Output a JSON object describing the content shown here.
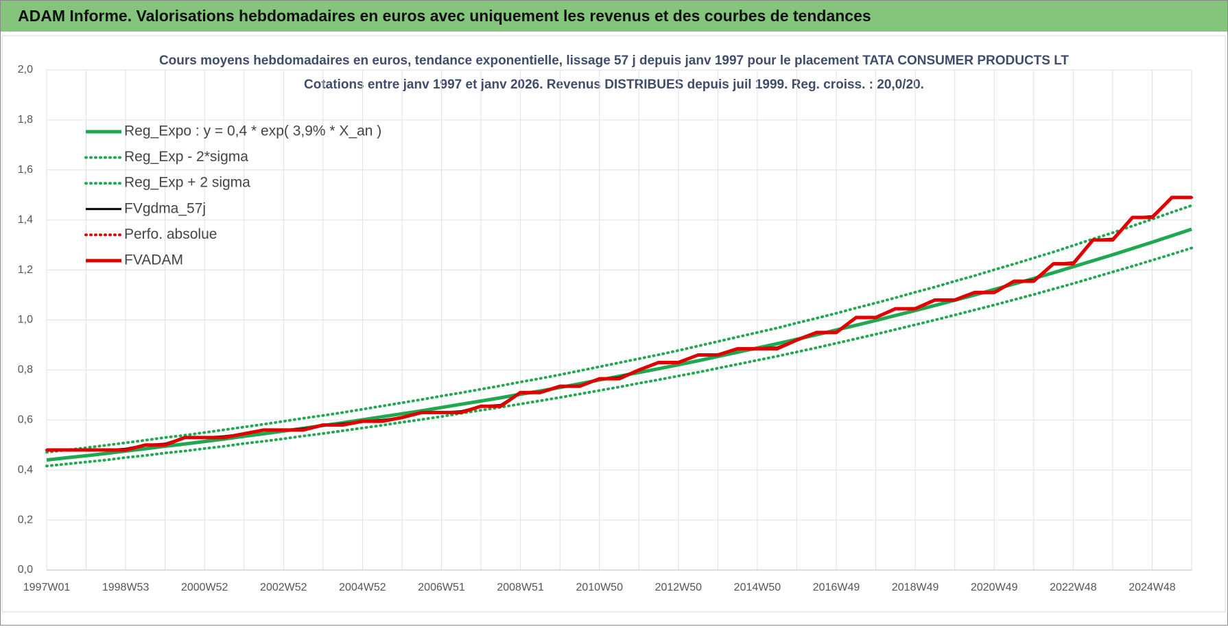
{
  "header": {
    "title": "ADAM Informe. Valorisations hebdomadaires en euros avec uniquement les revenus et des courbes de tendances"
  },
  "chart_data": {
    "type": "line",
    "title": "Cours moyens hebdomadaires en euros, tendance exponentielle, lissage 57 j depuis janv 1997  pour le placement TATA CONSUMER PRODUCTS LT",
    "subtitle": "Cotations entre janv 1997 et janv 2026. Revenus DISTRIBUES depuis juil 1999. Reg. croiss. : 20,0/20.",
    "categories": [
      "1997W01",
      null,
      null,
      null,
      "1998W53",
      null,
      null,
      null,
      "2000W52",
      null,
      null,
      null,
      "2002W52",
      null,
      null,
      null,
      "2004W52",
      null,
      null,
      null,
      "2006W51",
      null,
      null,
      null,
      "2008W51",
      null,
      null,
      null,
      "2010W50",
      null,
      null,
      null,
      "2012W50",
      null,
      null,
      null,
      "2014W50",
      null,
      null,
      null,
      "2016W49",
      null,
      null,
      null,
      "2018W49",
      null,
      null,
      null,
      "2020W49",
      null,
      null,
      null,
      "2022W48",
      null,
      null,
      null,
      "2024W48",
      null,
      null
    ],
    "ylim": [
      0,
      2
    ],
    "yticks": [
      {
        "value": 0,
        "label": "0,0"
      },
      {
        "value": 0.2,
        "label": "0,2"
      },
      {
        "value": 0.4,
        "label": "0,4"
      },
      {
        "value": 0.6,
        "label": "0,6"
      },
      {
        "value": 0.8,
        "label": "0,8"
      },
      {
        "value": 1,
        "label": "1,0"
      },
      {
        "value": 1.2,
        "label": "1,2"
      },
      {
        "value": 1.4,
        "label": "1,4"
      },
      {
        "value": 1.6,
        "label": "1,6"
      },
      {
        "value": 1.8,
        "label": "1,8"
      },
      {
        "value": 2,
        "label": "2,0"
      }
    ],
    "grid": true,
    "legend": "top-left",
    "series": [
      {
        "name": "Reg_Expo : y = 0,4 * exp( 3,9% *  X_an )",
        "color": "#1fa84f",
        "style": "solid",
        "values": [
          0.44,
          0.449,
          0.457,
          0.466,
          0.476,
          0.485,
          0.495,
          0.504,
          0.514,
          0.524,
          0.535,
          0.545,
          0.556,
          0.567,
          0.578,
          0.589,
          0.601,
          0.613,
          0.625,
          0.637,
          0.65,
          0.663,
          0.676,
          0.689,
          0.703,
          0.716,
          0.73,
          0.745,
          0.76,
          0.775,
          0.79,
          0.805,
          0.821,
          0.837,
          0.854,
          0.871,
          0.888,
          0.905,
          0.923,
          0.941,
          0.96,
          0.979,
          0.998,
          1.018,
          1.038,
          1.058,
          1.079,
          1.1,
          1.122,
          1.144,
          1.166,
          1.189,
          1.213,
          1.237,
          1.261,
          1.286,
          1.311,
          1.337,
          1.363
        ]
      },
      {
        "name": "Reg_Exp - 2*sigma",
        "color": "#1fa84f",
        "style": "dotted",
        "values": [
          0.416,
          0.424,
          0.432,
          0.44,
          0.45,
          0.458,
          0.468,
          0.476,
          0.486,
          0.495,
          0.506,
          0.515,
          0.525,
          0.536,
          0.546,
          0.557,
          0.568,
          0.579,
          0.591,
          0.602,
          0.614,
          0.627,
          0.639,
          0.651,
          0.664,
          0.677,
          0.69,
          0.704,
          0.718,
          0.732,
          0.747,
          0.761,
          0.776,
          0.791,
          0.807,
          0.823,
          0.839,
          0.855,
          0.872,
          0.889,
          0.907,
          0.925,
          0.943,
          0.962,
          0.981,
          1.0,
          1.02,
          1.04,
          1.06,
          1.081,
          1.102,
          1.124,
          1.146,
          1.169,
          1.192,
          1.215,
          1.239,
          1.263,
          1.288
        ]
      },
      {
        "name": "Reg_Exp + 2 sigma",
        "color": "#1fa84f",
        "style": "dotted",
        "values": [
          0.471,
          0.48,
          0.489,
          0.499,
          0.509,
          0.519,
          0.53,
          0.539,
          0.55,
          0.561,
          0.572,
          0.583,
          0.595,
          0.607,
          0.618,
          0.63,
          0.643,
          0.656,
          0.669,
          0.682,
          0.696,
          0.709,
          0.723,
          0.737,
          0.752,
          0.766,
          0.781,
          0.797,
          0.813,
          0.829,
          0.845,
          0.861,
          0.878,
          0.896,
          0.914,
          0.932,
          0.95,
          0.968,
          0.988,
          1.007,
          1.027,
          1.048,
          1.068,
          1.089,
          1.111,
          1.132,
          1.155,
          1.177,
          1.201,
          1.224,
          1.248,
          1.272,
          1.298,
          1.324,
          1.349,
          1.376,
          1.403,
          1.431,
          1.458
        ]
      },
      {
        "name": "FVgdma_57j",
        "color": "#000000",
        "style": "solid",
        "values": [
          0.48,
          0.48,
          0.48,
          0.48,
          0.485,
          0.5,
          0.505,
          0.53,
          0.53,
          0.535,
          0.545,
          0.56,
          0.56,
          0.565,
          0.58,
          0.585,
          0.595,
          0.6,
          0.61,
          0.63,
          0.63,
          0.635,
          0.655,
          0.66,
          0.71,
          0.712,
          0.735,
          0.738,
          0.765,
          0.77,
          0.8,
          0.83,
          0.832,
          0.86,
          0.862,
          0.885,
          0.887,
          0.89,
          0.92,
          0.95,
          0.952,
          1.01,
          1.012,
          1.045,
          1.048,
          1.08,
          1.082,
          1.11,
          1.113,
          1.155,
          1.16,
          1.225,
          1.23,
          1.32,
          1.325,
          1.41,
          1.415,
          1.49,
          1.49
        ]
      },
      {
        "name": "Perfo. absolue",
        "color": "#e00000",
        "style": "dotted",
        "values": [
          0.48,
          0.48,
          0.48,
          0.48,
          0.48,
          0.5,
          0.5,
          0.53,
          0.53,
          0.53,
          0.545,
          0.56,
          0.56,
          0.56,
          0.58,
          0.58,
          0.595,
          0.595,
          0.61,
          0.63,
          0.63,
          0.63,
          0.655,
          0.655,
          0.71,
          0.71,
          0.735,
          0.735,
          0.765,
          0.765,
          0.8,
          0.83,
          0.83,
          0.86,
          0.86,
          0.885,
          0.885,
          0.885,
          0.92,
          0.95,
          0.95,
          1.01,
          1.01,
          1.045,
          1.045,
          1.08,
          1.08,
          1.11,
          1.11,
          1.155,
          1.155,
          1.225,
          1.225,
          1.32,
          1.32,
          1.41,
          1.41,
          1.49,
          1.49
        ]
      },
      {
        "name": "FVADAM",
        "color": "#e00000",
        "style": "thick",
        "values": [
          0.48,
          0.48,
          0.48,
          0.48,
          0.48,
          0.5,
          0.5,
          0.53,
          0.53,
          0.53,
          0.545,
          0.56,
          0.56,
          0.56,
          0.58,
          0.58,
          0.595,
          0.595,
          0.61,
          0.63,
          0.63,
          0.63,
          0.655,
          0.655,
          0.71,
          0.71,
          0.735,
          0.735,
          0.765,
          0.765,
          0.8,
          0.83,
          0.83,
          0.86,
          0.86,
          0.885,
          0.885,
          0.885,
          0.92,
          0.95,
          0.95,
          1.01,
          1.01,
          1.045,
          1.045,
          1.08,
          1.08,
          1.11,
          1.11,
          1.155,
          1.155,
          1.225,
          1.225,
          1.32,
          1.32,
          1.41,
          1.41,
          1.49,
          1.49
        ]
      }
    ]
  }
}
